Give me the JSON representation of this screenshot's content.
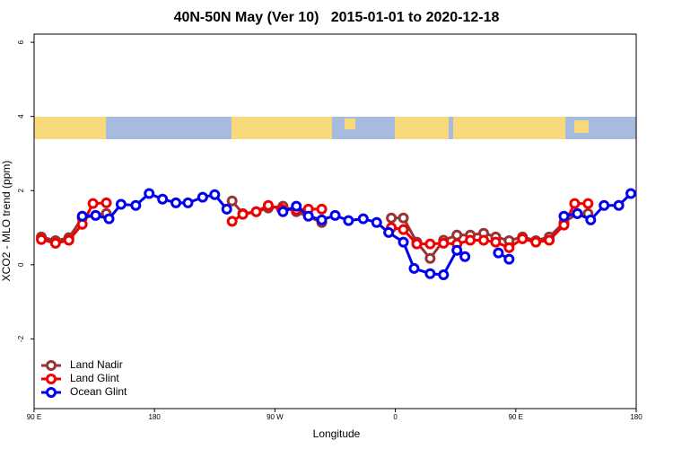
{
  "chart_data": {
    "type": "line",
    "title": "40N-50N May (Ver 10)   2015-01-01 to 2020-12-18",
    "xlabel": "Longitude",
    "ylabel": "XCO2 - MLO trend (ppm)",
    "xlim": [
      90,
      540
    ],
    "ylim": [
      -3.88,
      6.22
    ],
    "xticks": [
      {
        "value": 90,
        "label": "90 E"
      },
      180,
      {
        "value": 270,
        "label": "90 W"
      },
      {
        "value": 360,
        "label": "0"
      },
      {
        "value": 450,
        "label": "90 E"
      },
      {
        "value": 540,
        "label": "180"
      }
    ],
    "yticks": [
      -2,
      0,
      2,
      4,
      6
    ],
    "legend": "bottom-left",
    "series": [
      {
        "name": "Land Nadir",
        "color": "#993333",
        "x": [
          95.4,
          106,
          116,
          126,
          136,
          144,
          null,
          238,
          246,
          256,
          265,
          276,
          286,
          305,
          null,
          357,
          366,
          376,
          386,
          396,
          406,
          416,
          426,
          435,
          445,
          455,
          465,
          475,
          486,
          496,
          504
        ],
        "values": [
          0.75,
          0.65,
          0.73,
          1.26,
          1.33,
          1.38,
          null,
          1.72,
          1.38,
          1.43,
          1.53,
          1.58,
          1.43,
          1.14,
          null,
          1.26,
          1.26,
          0.61,
          0.17,
          0.66,
          0.8,
          0.8,
          0.85,
          0.75,
          0.65,
          0.75,
          0.65,
          0.75,
          1.14,
          1.38,
          1.38
        ]
      },
      {
        "name": "Land Glint",
        "color": "#ee0000",
        "x": [
          95.4,
          106,
          116,
          126,
          134,
          144,
          null,
          238,
          246,
          256,
          265,
          275,
          286,
          295,
          305,
          null,
          357,
          366,
          376,
          386,
          396,
          406,
          416,
          426,
          435,
          445,
          455,
          465,
          475,
          486,
          494,
          504
        ],
        "values": [
          0.68,
          0.58,
          0.66,
          1.09,
          1.65,
          1.67,
          null,
          1.17,
          1.36,
          1.43,
          1.6,
          1.5,
          1.48,
          1.5,
          1.5,
          null,
          1.0,
          0.95,
          0.56,
          0.56,
          0.58,
          0.56,
          0.66,
          0.66,
          0.61,
          0.46,
          0.7,
          0.61,
          0.66,
          1.07,
          1.65,
          1.65
        ]
      },
      {
        "name": "Ocean Glint",
        "color": "#0000ee",
        "x": [
          126,
          136,
          146,
          155,
          166,
          176,
          186,
          196,
          205,
          216,
          225,
          234,
          null,
          276,
          286,
          295,
          305,
          315,
          325,
          336,
          346,
          355,
          366,
          374,
          386,
          396,
          406,
          412,
          null,
          437,
          445,
          null,
          486,
          496,
          506,
          516,
          527,
          536
        ],
        "values": [
          1.31,
          1.33,
          1.24,
          1.63,
          1.6,
          1.92,
          1.77,
          1.67,
          1.67,
          1.82,
          1.89,
          1.5,
          null,
          1.43,
          1.58,
          1.31,
          1.21,
          1.33,
          1.19,
          1.24,
          1.14,
          0.87,
          0.61,
          -0.1,
          -0.24,
          -0.27,
          0.39,
          0.22,
          null,
          0.32,
          0.15,
          null,
          1.31,
          1.38,
          1.21,
          1.6,
          1.6,
          1.92
        ]
      }
    ]
  }
}
